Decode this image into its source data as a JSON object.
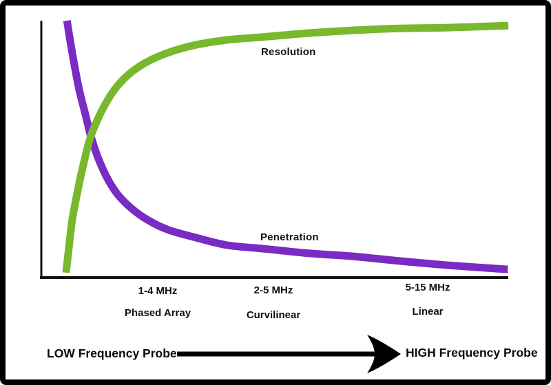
{
  "page": {
    "background": "#ffffff",
    "frame_color": "#000000",
    "text_color": "#111111"
  },
  "chart_data": {
    "type": "line",
    "title": "",
    "x_axis": {
      "low_label": "LOW Frequency Probe",
      "high_label": "HIGH Frequency Probe",
      "categories": [
        {
          "frequency": "1-4 MHz",
          "probe": "Phased Array"
        },
        {
          "frequency": "2-5 MHz",
          "probe": "Curvilinear"
        },
        {
          "frequency": "5-15 MHz",
          "probe": "Linear"
        }
      ]
    },
    "axes": {
      "axis_color": "#111111",
      "grid": false,
      "numeric_ticks": false
    },
    "series": [
      {
        "name": "Resolution",
        "color": "#77b82c",
        "direction": "increasing",
        "points_pct": [
          [
            5.3,
            1.9
          ],
          [
            5.9,
            11.5
          ],
          [
            6.6,
            22.3
          ],
          [
            7.7,
            33.0
          ],
          [
            8.8,
            42.4
          ],
          [
            10.6,
            55.0
          ],
          [
            13.0,
            65.1
          ],
          [
            15.5,
            72.7
          ],
          [
            18.4,
            78.6
          ],
          [
            22.1,
            83.4
          ],
          [
            26.5,
            87.1
          ],
          [
            32.4,
            90.3
          ],
          [
            39.8,
            92.5
          ],
          [
            47.2,
            93.6
          ],
          [
            59.0,
            95.4
          ],
          [
            73.7,
            96.8
          ],
          [
            87.0,
            97.3
          ],
          [
            100,
            98.1
          ]
        ]
      },
      {
        "name": "Penetration",
        "color": "#7a2bc4",
        "direction": "decreasing",
        "points_pct": [
          [
            5.5,
            100
          ],
          [
            6.2,
            92.0
          ],
          [
            7.1,
            82.6
          ],
          [
            8.1,
            73.2
          ],
          [
            9.4,
            63.8
          ],
          [
            10.6,
            55.0
          ],
          [
            12.1,
            46.9
          ],
          [
            14.0,
            39.1
          ],
          [
            16.2,
            32.7
          ],
          [
            19.2,
            27.1
          ],
          [
            22.9,
            22.3
          ],
          [
            27.3,
            18.5
          ],
          [
            33.2,
            15.5
          ],
          [
            39.8,
            12.6
          ],
          [
            47.2,
            11.3
          ],
          [
            57.5,
            9.4
          ],
          [
            66.4,
            8.3
          ],
          [
            78.2,
            6.2
          ],
          [
            88.5,
            4.6
          ],
          [
            99.9,
            3.2
          ]
        ]
      }
    ],
    "annotations": {
      "arrow_color": "#000000",
      "arrow_meaning": "frequency increases left to right"
    }
  }
}
